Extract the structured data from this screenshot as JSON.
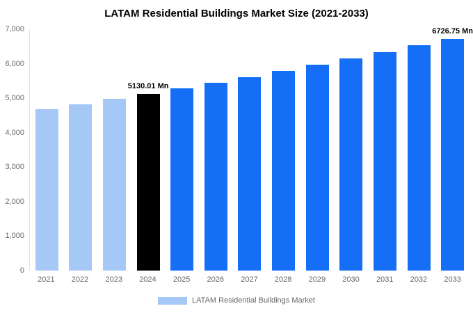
{
  "chart_data": {
    "type": "bar",
    "title": "LATAM Residential Buildings Market Size (2021-2033)",
    "categories": [
      "2021",
      "2022",
      "2023",
      "2024",
      "2025",
      "2026",
      "2027",
      "2028",
      "2029",
      "2030",
      "2031",
      "2032",
      "2033"
    ],
    "values": [
      4686,
      4829,
      4977,
      5130.01,
      5287,
      5449,
      5616,
      5788,
      5965,
      6147,
      6335,
      6529,
      6726.75
    ],
    "unit": "Mn",
    "ylim": [
      0,
      7000
    ],
    "ytick_step": 1000,
    "yticks": [
      "0",
      "1,000",
      "2,000",
      "3,000",
      "4,000",
      "5,000",
      "6,000",
      "7,000"
    ],
    "grid": false,
    "legend_position": "bottom",
    "colors": {
      "historical": "#a5c8f7",
      "base": "#000000",
      "forecast": "#156ff6"
    },
    "color_roles": [
      "historical",
      "historical",
      "historical",
      "base",
      "forecast",
      "forecast",
      "forecast",
      "forecast",
      "forecast",
      "forecast",
      "forecast",
      "forecast",
      "forecast"
    ],
    "annotations": [
      {
        "category": "2024",
        "text": "5130.01 Mn"
      },
      {
        "category": "2033",
        "text": "6726.75 Mn"
      }
    ],
    "legend": {
      "label": "LATAM Residential Buildings Market",
      "swatch_color": "#a5c8f7"
    }
  }
}
